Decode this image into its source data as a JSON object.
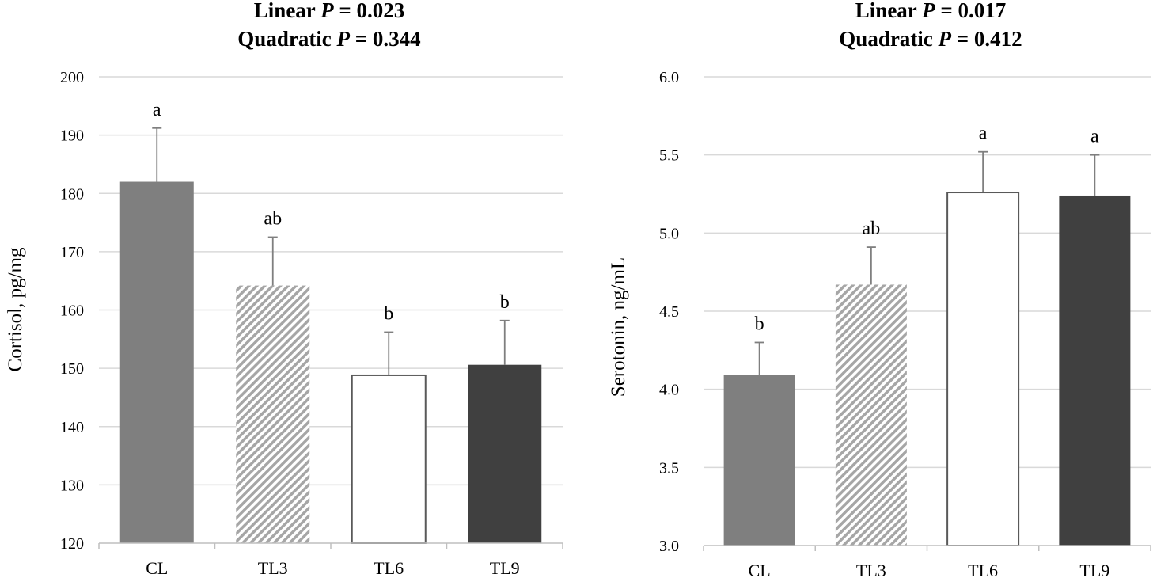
{
  "chart_data": [
    {
      "type": "bar",
      "title_lines": [
        {
          "prefix": "Linear ",
          "p": "P",
          "suffix": " = 0.023"
        },
        {
          "prefix": "Quadratic ",
          "p": "P",
          "suffix": " = 0.344"
        }
      ],
      "ylabel": "Cortisol,  pg/mg",
      "xlabel": "",
      "categories": [
        "CL",
        "TL3",
        "TL6",
        "TL9"
      ],
      "values": [
        182,
        164.2,
        148.8,
        150.6
      ],
      "errors": [
        9.2,
        8.3,
        7.4,
        7.6
      ],
      "letters": [
        "a",
        "ab",
        "b",
        "b"
      ],
      "ylim": [
        120,
        200
      ],
      "yticks": [
        120,
        130,
        140,
        150,
        160,
        170,
        180,
        190,
        200
      ],
      "tick_decimals": 0,
      "grid": true
    },
    {
      "type": "bar",
      "title_lines": [
        {
          "prefix": "Linear ",
          "p": "P",
          "suffix": " = 0.017"
        },
        {
          "prefix": "Quadratic ",
          "p": "P",
          "suffix": " = 0.412"
        }
      ],
      "ylabel": "Serotonin,  ng/mL",
      "xlabel": "",
      "categories": [
        "CL",
        "TL3",
        "TL6",
        "TL9"
      ],
      "values": [
        4.09,
        4.67,
        5.26,
        5.24
      ],
      "errors": [
        0.21,
        0.24,
        0.26,
        0.26
      ],
      "letters": [
        "b",
        "ab",
        "a",
        "a"
      ],
      "ylim": [
        3.0,
        6.0
      ],
      "yticks": [
        3.0,
        3.5,
        4.0,
        4.5,
        5.0,
        5.5,
        6.0
      ],
      "tick_decimals": 1,
      "grid": true
    }
  ],
  "bar_styles": [
    {
      "category": "CL",
      "fill": "#7f7f7f",
      "pattern": "solid",
      "border": "none"
    },
    {
      "category": "TL3",
      "fill": "#ffffff",
      "pattern": "diagonal-stripes",
      "stripe_color": "#a6a6a6",
      "border": "none"
    },
    {
      "category": "TL6",
      "fill": "#ffffff",
      "pattern": "solid",
      "border": "#595959"
    },
    {
      "category": "TL9",
      "fill": "#404040",
      "pattern": "solid",
      "border": "none"
    }
  ]
}
